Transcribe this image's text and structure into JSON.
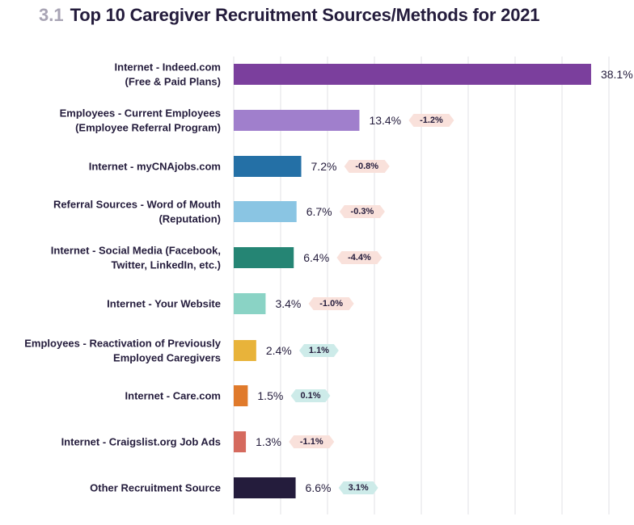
{
  "title": {
    "number": "3.1",
    "text": "Top 10 Caregiver Recruitment Sources/Methods for 2021"
  },
  "chart_data": {
    "type": "bar",
    "orientation": "horizontal",
    "categories": [
      [
        "Internet - Indeed.com",
        "(Free & Paid Plans)"
      ],
      [
        "Employees - Current Employees",
        "(Employee Referral Program)"
      ],
      [
        "Internet - myCNAjobs.com"
      ],
      [
        "Referral Sources - Word of Mouth",
        "(Reputation)"
      ],
      [
        "Internet - Social Media (Facebook,",
        "Twitter, LinkedIn, etc.)"
      ],
      [
        "Internet - Your Website"
      ],
      [
        "Employees - Reactivation of Previously",
        "Employed Caregivers"
      ],
      [
        "Internet - Care.com"
      ],
      [
        "Internet - Craigslist.org Job Ads"
      ],
      [
        "Other Recruitment Source"
      ]
    ],
    "values": [
      38.1,
      13.4,
      7.2,
      6.7,
      6.4,
      3.4,
      2.4,
      1.5,
      1.3,
      6.6
    ],
    "value_labels": [
      "38.1%",
      "13.4%",
      "7.2%",
      "6.7%",
      "6.4%",
      "3.4%",
      "2.4%",
      "1.5%",
      "1.3%",
      "6.6%"
    ],
    "changes": [
      "",
      "-1.2%",
      "-0.8%",
      "-0.3%",
      "-4.4%",
      "-1.0%",
      "1.1%",
      "0.1%",
      "-1.1%",
      "3.1%"
    ],
    "change_direction": [
      "none",
      "down",
      "down",
      "down",
      "down",
      "down",
      "up",
      "up",
      "down",
      "up"
    ],
    "colors": [
      "#7b3f9d",
      "#a07fcc",
      "#2470a6",
      "#8ac5e3",
      "#258574",
      "#8ad3c5",
      "#e8b33a",
      "#e07a2b",
      "#d56a5e",
      "#241c3c"
    ],
    "change_colors": {
      "down": "#f9e1db",
      "up": "#cdebe9"
    },
    "xlim": [
      0,
      40
    ],
    "grid": true
  }
}
